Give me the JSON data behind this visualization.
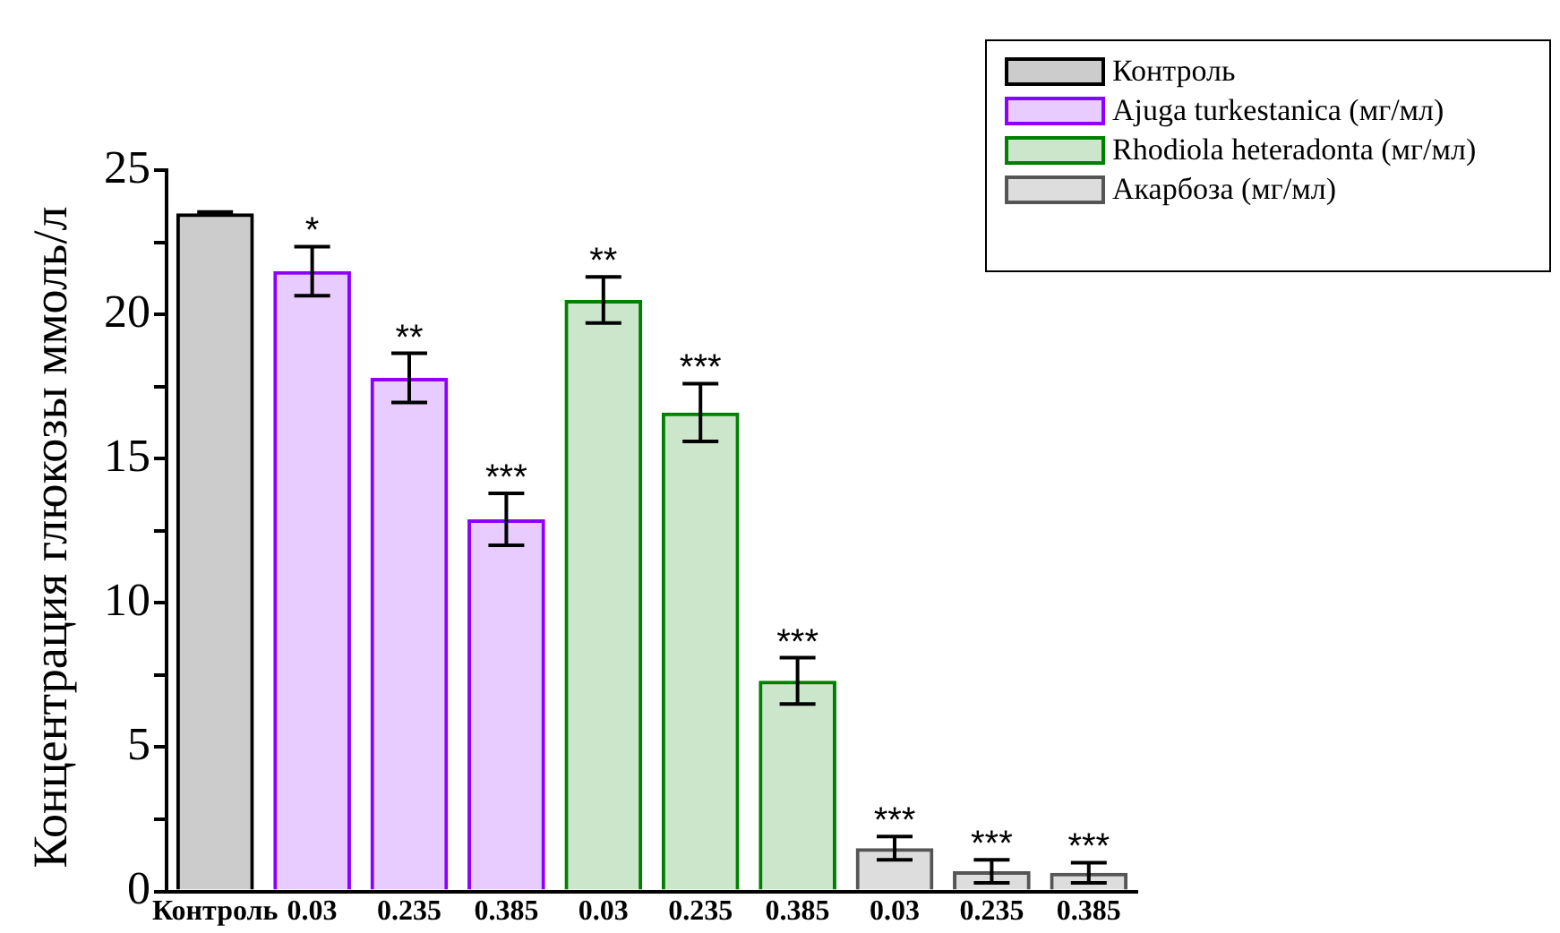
{
  "chart_data": {
    "type": "bar",
    "ylabel": "Концентрация глюкозы ммоль/л",
    "categories": [
      "Контроль",
      "0.03",
      "0.235",
      "0.385",
      "0.03",
      "0.235",
      "0.385",
      "0.03",
      "0.235",
      "0.385"
    ],
    "series": [
      {
        "name": "Контроль",
        "color": "#000000",
        "values": [
          23.5,
          null,
          null,
          null,
          null,
          null,
          null,
          null,
          null,
          null
        ],
        "errors": [
          0.05,
          null,
          null,
          null,
          null,
          null,
          null,
          null,
          null,
          null
        ]
      },
      {
        "name": "Ajuga turkestanica (мг/мл)",
        "color": "#8b00ff",
        "values": [
          null,
          21.5,
          17.8,
          12.9,
          null,
          null,
          null,
          null,
          null,
          null
        ],
        "errors": [
          null,
          0.85,
          0.85,
          0.9,
          null,
          null,
          null,
          null,
          null,
          null
        ],
        "value_labels": [
          null,
          "*",
          "**",
          "***",
          null,
          null,
          null,
          null,
          null,
          null
        ]
      },
      {
        "name": "Rhodiola heteradonta (мг/мл)",
        "color": "#008000",
        "values": [
          null,
          null,
          null,
          null,
          20.5,
          16.6,
          7.3,
          null,
          null,
          null
        ],
        "errors": [
          null,
          null,
          null,
          null,
          0.8,
          1.0,
          0.8,
          null,
          null,
          null
        ],
        "value_labels": [
          null,
          null,
          null,
          null,
          "**",
          "***",
          "***",
          null,
          null,
          null
        ]
      },
      {
        "name": "Акарбоза  (мг/мл)",
        "color": "#555555",
        "values": [
          null,
          null,
          null,
          null,
          null,
          null,
          null,
          1.5,
          0.7,
          0.65
        ],
        "errors": [
          null,
          null,
          null,
          null,
          null,
          null,
          null,
          0.4,
          0.4,
          0.35
        ],
        "value_labels": [
          null,
          null,
          null,
          null,
          null,
          null,
          null,
          "***",
          "***",
          "***"
        ]
      }
    ],
    "ylim": [
      0,
      25
    ],
    "yticks": [
      0,
      {
        "value": 2.5,
        "label": null
      },
      5,
      {
        "value": 7.5,
        "label": null
      },
      10,
      {
        "value": 12.5,
        "label": null
      },
      15,
      {
        "value": 17.5,
        "label": null
      },
      20,
      {
        "value": 22.5,
        "label": null
      },
      25
    ],
    "legend": "top right"
  }
}
